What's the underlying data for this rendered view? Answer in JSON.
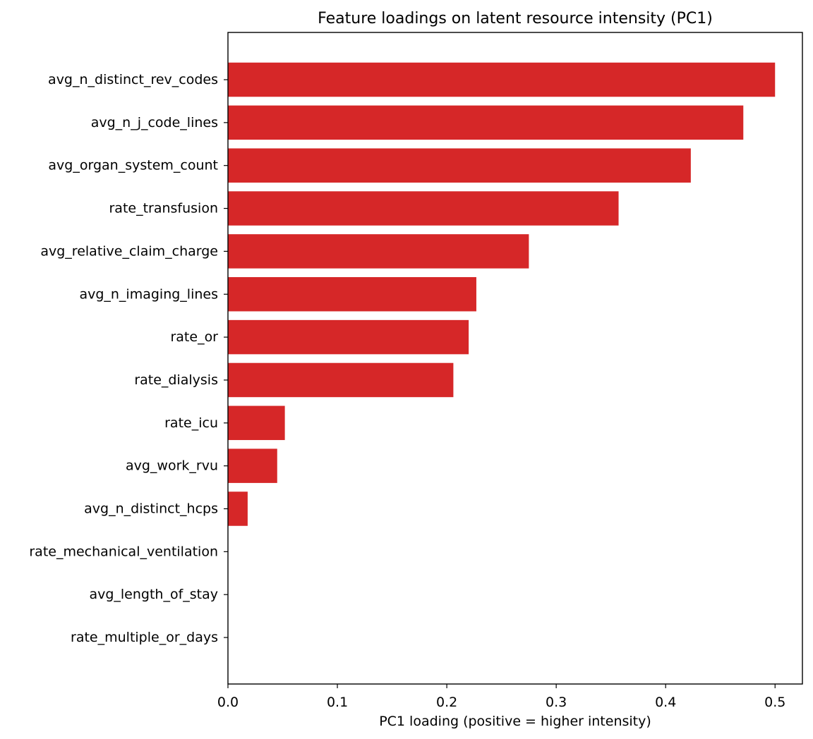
{
  "chart_data": {
    "type": "bar",
    "orientation": "horizontal",
    "title": "Feature loadings on latent resource intensity (PC1)",
    "xlabel": "PC1 loading (positive = higher intensity)",
    "ylabel": "",
    "xlim": [
      0.0,
      0.525
    ],
    "xticks": [
      0.0,
      0.1,
      0.2,
      0.3,
      0.4,
      0.5
    ],
    "xtick_labels": [
      "0.0",
      "0.1",
      "0.2",
      "0.3",
      "0.4",
      "0.5"
    ],
    "bar_color": "#d62728",
    "grid": false,
    "categories": [
      "avg_n_distinct_rev_codes",
      "avg_n_j_code_lines",
      "avg_organ_system_count",
      "rate_transfusion",
      "avg_relative_claim_charge",
      "avg_n_imaging_lines",
      "rate_or",
      "rate_dialysis",
      "rate_icu",
      "avg_work_rvu",
      "avg_n_distinct_hcps",
      "rate_mechanical_ventilation",
      "avg_length_of_stay",
      "rate_multiple_or_days"
    ],
    "values": [
      0.5,
      0.471,
      0.423,
      0.357,
      0.275,
      0.227,
      0.22,
      0.206,
      0.052,
      0.045,
      0.018,
      0.0,
      0.0,
      0.0
    ]
  }
}
